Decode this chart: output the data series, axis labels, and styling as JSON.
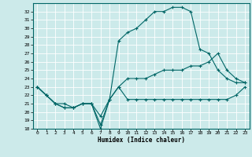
{
  "xlabel": "Humidex (Indice chaleur)",
  "bg_color": "#cceaea",
  "line_color": "#006666",
  "grid_color": "#ffffff",
  "xlim": [
    -0.5,
    23.5
  ],
  "ylim": [
    18,
    33
  ],
  "yticks": [
    18,
    19,
    20,
    21,
    22,
    23,
    24,
    25,
    26,
    27,
    28,
    29,
    30,
    31,
    32
  ],
  "xticks": [
    0,
    1,
    2,
    3,
    4,
    5,
    6,
    7,
    8,
    9,
    10,
    11,
    12,
    13,
    14,
    15,
    16,
    17,
    18,
    19,
    20,
    21,
    22,
    23
  ],
  "line1_x": [
    0,
    1,
    2,
    3,
    4,
    5,
    6,
    7,
    8,
    9,
    10,
    11,
    12,
    13,
    14,
    15,
    16,
    17,
    18,
    19,
    20,
    21,
    22,
    23
  ],
  "line1_y": [
    23,
    22,
    21,
    20.5,
    20.5,
    21,
    21,
    18,
    21.5,
    23,
    21.5,
    21.5,
    21.5,
    21.5,
    21.5,
    21.5,
    21.5,
    21.5,
    21.5,
    21.5,
    21.5,
    21.5,
    22,
    23
  ],
  "line2_x": [
    0,
    1,
    2,
    3,
    4,
    5,
    6,
    7,
    8,
    9,
    10,
    11,
    12,
    13,
    14,
    15,
    16,
    17,
    18,
    19,
    20,
    21,
    22,
    23
  ],
  "line2_y": [
    23,
    22,
    21,
    20.5,
    20.5,
    21,
    21,
    19.5,
    21.5,
    23,
    24,
    24,
    24,
    24.5,
    25,
    25,
    25,
    25.5,
    25.5,
    26,
    27,
    25,
    24,
    23.5
  ],
  "line3_x": [
    0,
    1,
    2,
    3,
    4,
    5,
    6,
    7,
    8,
    9,
    10,
    11,
    12,
    13,
    14,
    15,
    16,
    17,
    18,
    19,
    20,
    21,
    22,
    23
  ],
  "line3_y": [
    23,
    22,
    21,
    21,
    20.5,
    21,
    21,
    18.5,
    21.5,
    28.5,
    29.5,
    30,
    31,
    32,
    32,
    32.5,
    32.5,
    32,
    27.5,
    27,
    25,
    24,
    23.5,
    23.5
  ]
}
